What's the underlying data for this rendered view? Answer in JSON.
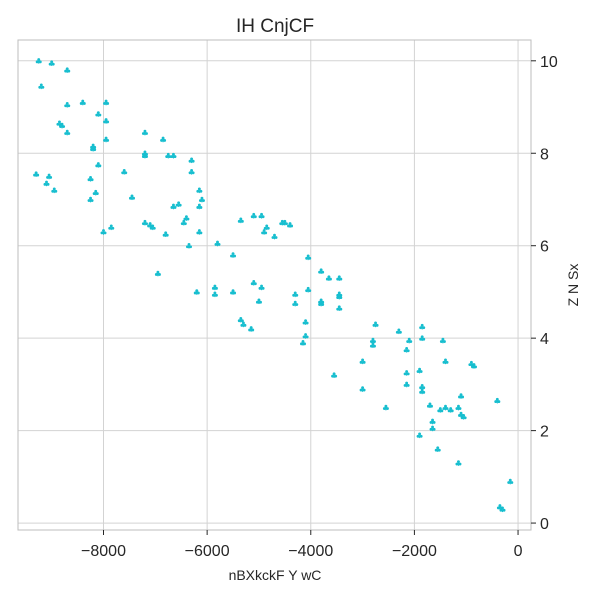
{
  "chart_data": {
    "type": "scatter",
    "title": "IH CnjCF",
    "xlabel": "nBXkckF Y wC",
    "ylabel": "Z N Sx",
    "xlim": [
      -9650,
      250
    ],
    "ylim": [
      -0.15,
      10.45
    ],
    "xticks": [
      -8000,
      -6000,
      -4000,
      -2000,
      0
    ],
    "xtick_labels": [
      "−8000",
      "−6000",
      "−4000",
      "−2000",
      "0"
    ],
    "yticks": [
      0,
      2,
      4,
      6,
      8,
      10
    ],
    "ytick_labels": [
      "0",
      "2",
      "4",
      "6",
      "8",
      "10"
    ],
    "y_axis_side": "right",
    "grid": true,
    "marker": "club",
    "color": "#17becf",
    "points": [
      [
        -9250,
        10.0
      ],
      [
        -9000,
        9.95
      ],
      [
        -8700,
        9.8
      ],
      [
        -9200,
        9.45
      ],
      [
        -8700,
        9.05
      ],
      [
        -8400,
        9.1
      ],
      [
        -7950,
        9.1
      ],
      [
        -8100,
        8.85
      ],
      [
        -7950,
        8.7
      ],
      [
        -8850,
        8.65
      ],
      [
        -8800,
        8.6
      ],
      [
        -8700,
        8.45
      ],
      [
        -7950,
        8.3
      ],
      [
        -8200,
        8.15
      ],
      [
        -8200,
        8.1
      ],
      [
        -8100,
        7.75
      ],
      [
        -7200,
        8.45
      ],
      [
        -6850,
        8.3
      ],
      [
        -7200,
        8.0
      ],
      [
        -7200,
        7.95
      ],
      [
        -6750,
        7.95
      ],
      [
        -6650,
        7.95
      ],
      [
        -6300,
        7.85
      ],
      [
        -6300,
        7.6
      ],
      [
        -7600,
        7.6
      ],
      [
        -9300,
        7.55
      ],
      [
        -9050,
        7.5
      ],
      [
        -9100,
        7.35
      ],
      [
        -8250,
        7.45
      ],
      [
        -8950,
        7.2
      ],
      [
        -8150,
        7.15
      ],
      [
        -7450,
        7.05
      ],
      [
        -8250,
        7.0
      ],
      [
        -6550,
        6.9
      ],
      [
        -6650,
        6.85
      ],
      [
        -6150,
        7.2
      ],
      [
        -6100,
        7.0
      ],
      [
        -6150,
        6.85
      ],
      [
        -6400,
        6.6
      ],
      [
        -6450,
        6.5
      ],
      [
        -7200,
        6.5
      ],
      [
        -7100,
        6.45
      ],
      [
        -7050,
        6.4
      ],
      [
        -7850,
        6.4
      ],
      [
        -8000,
        6.3
      ],
      [
        -6800,
        6.25
      ],
      [
        -6150,
        6.3
      ],
      [
        -6350,
        6.0
      ],
      [
        -5800,
        6.05
      ],
      [
        -5350,
        6.55
      ],
      [
        -5100,
        6.65
      ],
      [
        -4950,
        6.65
      ],
      [
        -4850,
        6.4
      ],
      [
        -4900,
        6.3
      ],
      [
        -4550,
        6.5
      ],
      [
        -4500,
        6.5
      ],
      [
        -4400,
        6.45
      ],
      [
        -4700,
        6.2
      ],
      [
        -5500,
        5.8
      ],
      [
        -4050,
        5.75
      ],
      [
        -6950,
        5.4
      ],
      [
        -5850,
        5.1
      ],
      [
        -5850,
        4.95
      ],
      [
        -6200,
        5.0
      ],
      [
        -5500,
        5.0
      ],
      [
        -5100,
        5.2
      ],
      [
        -4950,
        5.1
      ],
      [
        -5000,
        4.8
      ],
      [
        -3800,
        5.45
      ],
      [
        -3650,
        5.3
      ],
      [
        -3450,
        5.3
      ],
      [
        -4050,
        5.05
      ],
      [
        -4300,
        4.95
      ],
      [
        -3450,
        4.95
      ],
      [
        -3450,
        4.9
      ],
      [
        -4300,
        4.75
      ],
      [
        -3800,
        4.8
      ],
      [
        -3800,
        4.75
      ],
      [
        -3450,
        4.65
      ],
      [
        -5350,
        4.4
      ],
      [
        -5300,
        4.3
      ],
      [
        -5150,
        4.2
      ],
      [
        -4100,
        4.35
      ],
      [
        -4100,
        4.05
      ],
      [
        -4150,
        3.9
      ],
      [
        -2750,
        4.3
      ],
      [
        -2300,
        4.15
      ],
      [
        -1850,
        4.25
      ],
      [
        -2800,
        3.95
      ],
      [
        -2800,
        3.85
      ],
      [
        -2100,
        3.95
      ],
      [
        -1850,
        4.0
      ],
      [
        -2150,
        3.75
      ],
      [
        -1450,
        3.95
      ],
      [
        -3000,
        3.5
      ],
      [
        -1400,
        3.5
      ],
      [
        -900,
        3.45
      ],
      [
        -850,
        3.4
      ],
      [
        -3550,
        3.2
      ],
      [
        -1900,
        3.3
      ],
      [
        -2150,
        3.25
      ],
      [
        -2150,
        3.0
      ],
      [
        -1850,
        2.95
      ],
      [
        -1850,
        2.85
      ],
      [
        -3000,
        2.9
      ],
      [
        -1100,
        2.75
      ],
      [
        -2550,
        2.5
      ],
      [
        -1700,
        2.55
      ],
      [
        -1500,
        2.45
      ],
      [
        -1400,
        2.5
      ],
      [
        -1300,
        2.45
      ],
      [
        -1150,
        2.5
      ],
      [
        -1100,
        2.35
      ],
      [
        -1050,
        2.3
      ],
      [
        -1650,
        2.2
      ],
      [
        -1650,
        2.05
      ],
      [
        -1900,
        1.9
      ],
      [
        -1550,
        1.6
      ],
      [
        -400,
        2.65
      ],
      [
        -1150,
        1.3
      ],
      [
        -150,
        0.9
      ],
      [
        -350,
        0.35
      ],
      [
        -300,
        0.3
      ]
    ]
  }
}
